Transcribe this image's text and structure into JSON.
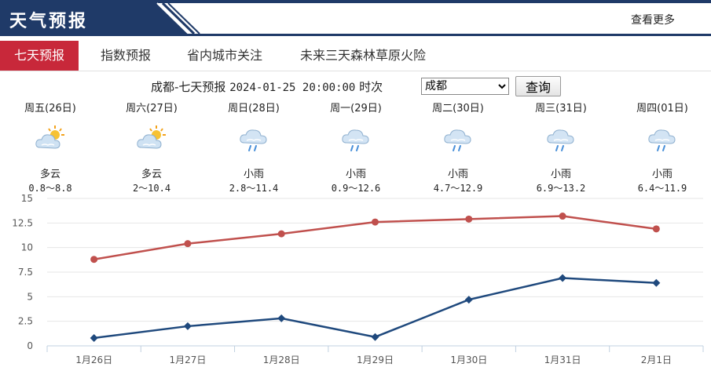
{
  "header": {
    "title": "天气预报",
    "more": "查看更多"
  },
  "tabs": [
    {
      "label": "七天预报",
      "active": true
    },
    {
      "label": "指数预报",
      "active": false
    },
    {
      "label": "省内城市关注",
      "active": false
    },
    {
      "label": "未来三天森林草原火险",
      "active": false
    }
  ],
  "query": {
    "label": "成都-七天预报",
    "time": "2024-01-25 20:00:00",
    "suffix": "时次",
    "city": "成都",
    "button": "查询"
  },
  "days": [
    {
      "name": "周五(26日)",
      "icon": "partly-cloudy-icon",
      "desc": "多云",
      "range": "0.8～8.8"
    },
    {
      "name": "周六(27日)",
      "icon": "partly-cloudy-icon",
      "desc": "多云",
      "range": "2～10.4"
    },
    {
      "name": "周日(28日)",
      "icon": "light-rain-icon",
      "desc": "小雨",
      "range": "2.8～11.4"
    },
    {
      "name": "周一(29日)",
      "icon": "light-rain-icon",
      "desc": "小雨",
      "range": "0.9～12.6"
    },
    {
      "name": "周二(30日)",
      "icon": "light-rain-icon",
      "desc": "小雨",
      "range": "4.7～12.9"
    },
    {
      "name": "周三(31日)",
      "icon": "light-rain-icon",
      "desc": "小雨",
      "range": "6.9～13.2"
    },
    {
      "name": "周四(01日)",
      "icon": "light-rain-icon",
      "desc": "小雨",
      "range": "6.4～11.9"
    }
  ],
  "chart_data": {
    "type": "line",
    "categories": [
      "1月26日",
      "1月27日",
      "1月28日",
      "1月29日",
      "1月30日",
      "1月31日",
      "2月1日"
    ],
    "series": [
      {
        "values": [
          8.8,
          10.4,
          11.4,
          12.6,
          12.9,
          13.2,
          11.9
        ],
        "color": "#c0504d",
        "marker": "circle"
      },
      {
        "values": [
          0.8,
          2,
          2.8,
          0.9,
          4.7,
          6.9,
          6.4
        ],
        "color": "#1f497d",
        "marker": "diamond"
      }
    ],
    "yticks": [
      "0",
      "2.5",
      "5",
      "7.5",
      "10",
      "12.5",
      "15"
    ],
    "ylim": [
      0,
      15
    ],
    "grid": true
  }
}
